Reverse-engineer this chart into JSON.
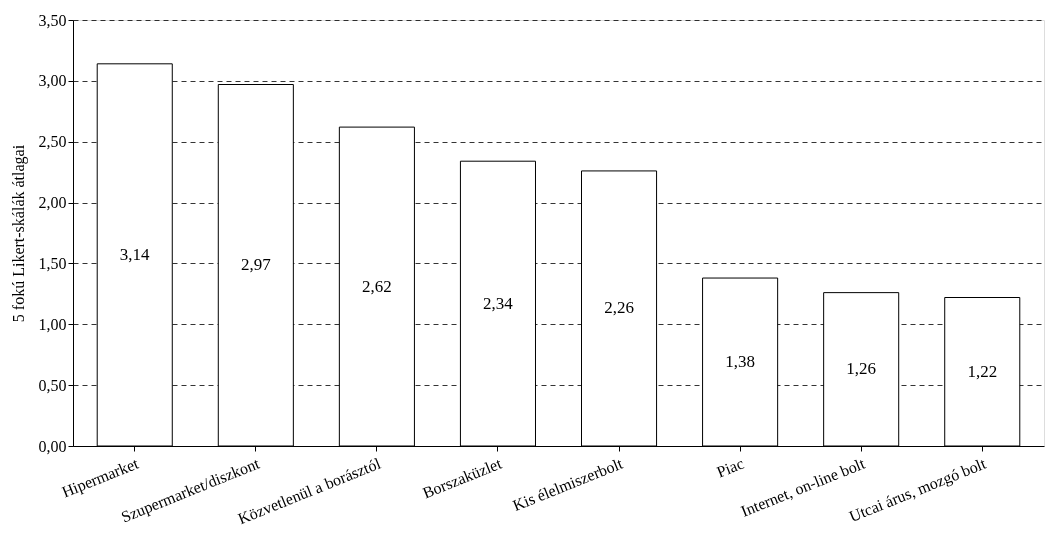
{
  "chart_data": {
    "type": "bar",
    "ylabel": "5 fokú Likert-skálák átlagai",
    "categories": [
      "Hipermarket",
      "Szupermarket/diszkont",
      "Közvetlenül a borásztól",
      "Borszaküzlet",
      "Kis élelmiszerbolt",
      "Piac",
      "Internet, on-line bolt",
      "Utcai árus, mozgó bolt"
    ],
    "values": [
      3.14,
      2.97,
      2.62,
      2.34,
      2.26,
      1.38,
      1.26,
      1.22
    ],
    "value_labels": [
      "3,14",
      "2,97",
      "2,62",
      "2,34",
      "2,26",
      "1,38",
      "1,26",
      "1,22"
    ],
    "color": "#ffffff",
    "ylim": [
      0,
      3.5
    ],
    "yticks": [
      {
        "value": 0,
        "label": "0,00"
      },
      {
        "value": 0.5,
        "label": "0,50"
      },
      {
        "value": 1,
        "label": "1,00"
      },
      {
        "value": 1.5,
        "label": "1,50"
      },
      {
        "value": 2,
        "label": "2,00"
      },
      {
        "value": 2.5,
        "label": "2,50"
      },
      {
        "value": 3,
        "label": "3,00"
      },
      {
        "value": 3.5,
        "label": "3,50"
      }
    ],
    "grid": "y"
  }
}
